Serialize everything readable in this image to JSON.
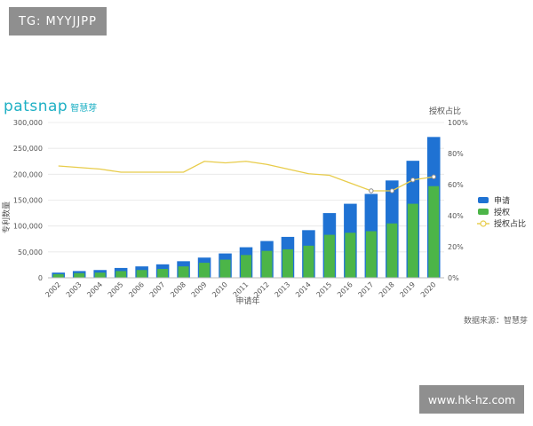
{
  "watermark_top": "TG: MYYJJPP",
  "watermark_bottom": "www.hk-hz.com",
  "brand": {
    "name": "patsnap",
    "cn": "智慧芽"
  },
  "source_note": "数据来源：智慧芽",
  "colors": {
    "applications": "#1f72d3",
    "grants": "#4cb548",
    "ratio": "#e8cc4a",
    "brand": "#1eb0c4",
    "watermark_bg": "#8f8f8f"
  },
  "chart_data": {
    "type": "bar",
    "categories": [
      "2002",
      "2003",
      "2004",
      "2005",
      "2006",
      "2007",
      "2008",
      "2009",
      "2010",
      "2011",
      "2012",
      "2013",
      "2014",
      "2015",
      "2016",
      "2017",
      "2018",
      "2019",
      "2020"
    ],
    "series": [
      {
        "name": "申请",
        "type": "bar",
        "axis": "left",
        "values": [
          10000,
          13000,
          15000,
          19000,
          22000,
          26000,
          32000,
          39000,
          47000,
          59000,
          71000,
          79000,
          92000,
          125000,
          143000,
          162000,
          188000,
          226000,
          272000
        ]
      },
      {
        "name": "授权",
        "type": "bar",
        "axis": "left",
        "values": [
          7000,
          9000,
          10000,
          13000,
          15000,
          17000,
          22000,
          29000,
          35000,
          44000,
          52000,
          55000,
          62000,
          83000,
          87000,
          90000,
          105000,
          143000,
          177000
        ]
      },
      {
        "name": "授权占比",
        "type": "line",
        "axis": "right",
        "values": [
          72,
          71,
          70,
          68,
          68,
          68,
          68,
          75,
          74,
          75,
          73,
          70,
          67,
          66,
          61,
          56,
          56,
          63,
          65
        ]
      }
    ],
    "xlabel": "申请年",
    "ylabel": "专利数量",
    "y2label": "授权占比",
    "ylim": [
      0,
      300000
    ],
    "y2lim": [
      0,
      100
    ],
    "yticks": [
      "0",
      "50,000",
      "100,000",
      "150,000",
      "200,000",
      "250,000",
      "300,000"
    ],
    "y2ticks": [
      "0%",
      "20%",
      "40%",
      "60%",
      "80%",
      "100%"
    ],
    "legend_position": "right",
    "grid": true
  }
}
